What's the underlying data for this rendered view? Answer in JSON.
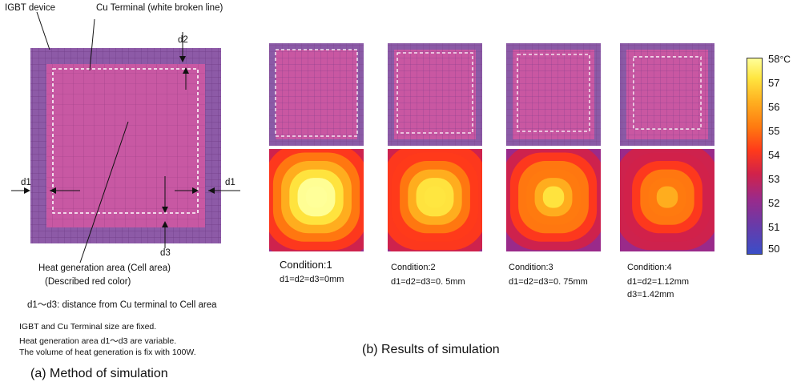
{
  "method": {
    "device_label": "IGBT device",
    "terminal_label": "Cu Terminal (white broken line)",
    "d1_label": "d1",
    "d2_label": "d2",
    "d3_label": "d3",
    "heat_area_label": "Heat generation area (Cell area)",
    "heat_area_note": "(Described red color)",
    "distance_note": "d1〜d3: distance from Cu terminal  to Cell area",
    "notes": [
      "IGBT and Cu Terminal size are fixed.",
      " Heat generation area d1〜d3 are variable.",
      "The volume of heat generation is fix with 100W."
    ],
    "caption": "(a) Method of simulation"
  },
  "results": {
    "caption": "(b) Results of simulation",
    "conditions": [
      {
        "title": "Condition:1",
        "params": [
          "d1=d2=d3=0mm"
        ],
        "offset": 0.0,
        "peak": 58.0
      },
      {
        "title": "Condition:2",
        "params": [
          "d1=d2=d3=0. 5mm"
        ],
        "offset": 0.5,
        "peak": 57.0
      },
      {
        "title": "Condition:3",
        "params": [
          "d1=d2=d3=0. 75mm"
        ],
        "offset": 0.75,
        "peak": 56.2
      },
      {
        "title": "Condition:4",
        "params": [
          "d1=d2=1.12mm",
          " d3=1.42mm"
        ],
        "offset": 1.12,
        "peak": 55.5
      }
    ]
  },
  "colorbar": {
    "unit": "°C",
    "ticks": [
      "58",
      "57",
      "56",
      "55",
      "54",
      "53",
      "52",
      "51",
      "50"
    ],
    "min": 50,
    "max": 58
  },
  "colors": {
    "device_purple": "#8a5aa6",
    "cell_magenta": "#c957a2",
    "grid_line": "#7c3d87",
    "colorbar_stops": [
      "#ffff99",
      "#ffe640",
      "#ffb020",
      "#ff7a10",
      "#ff3a1a",
      "#d1224a",
      "#9a2a8a",
      "#6a3aa8",
      "#3a4ec8"
    ]
  }
}
